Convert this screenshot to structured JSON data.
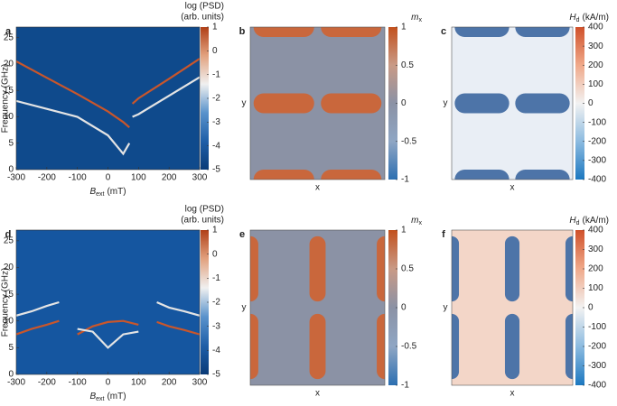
{
  "chart_data": [
    {
      "type": "spectrum",
      "panel": "a",
      "xlabel": {
        "symbol": "B",
        "sub": "ext",
        "unit": "(mT)"
      },
      "ylabel": "Frequency (GHz)",
      "xlim": [
        -300,
        300
      ],
      "xticks": [
        -300,
        -200,
        -100,
        0,
        100,
        200,
        300
      ],
      "ylim": [
        0,
        27
      ],
      "yticks": [
        0,
        5,
        10,
        15,
        20,
        25
      ],
      "x": [
        -300,
        -200,
        -100,
        0,
        50,
        70,
        80,
        100,
        200,
        300
      ],
      "series": [
        {
          "color": "#c9562b",
          "values": [
            20.5,
            17.4,
            14.3,
            11,
            9,
            8,
            null,
            null,
            null,
            null
          ]
        },
        {
          "color": "#c9562b",
          "values": [
            null,
            null,
            null,
            null,
            null,
            null,
            12.5,
            13.5,
            17.2,
            21
          ]
        },
        {
          "color": "#e4e4e4",
          "values": [
            13,
            11.5,
            10,
            6.5,
            3,
            5,
            null,
            null,
            null,
            null
          ]
        },
        {
          "color": "#e4e4e4",
          "values": [
            null,
            null,
            null,
            null,
            null,
            null,
            10,
            10.5,
            14,
            17.5
          ]
        }
      ],
      "colorbar_label": [
        "log (PSD)",
        "(arb. units)"
      ],
      "clim": [
        -5,
        1
      ],
      "cticks": [
        1,
        0,
        -1,
        -2,
        -3,
        -4,
        -5
      ],
      "colormap": [
        "#0a3b78",
        "#1f5fa8",
        "#5a93cc",
        "#f0f0f0",
        "#e2a27f",
        "#b03f17"
      ],
      "background": "#0f4a8c"
    },
    {
      "type": "map",
      "panel": "b",
      "xlabel": "x",
      "ylabel": "y",
      "pattern": "rows",
      "background": "#8b92a5",
      "domain_color": "#c9673c",
      "colorbar_label": {
        "symbol": "m",
        "sub": "x"
      },
      "clim": [
        -1,
        1
      ],
      "cticks": [
        1,
        0.5,
        0,
        -0.5,
        -1
      ],
      "colormap": [
        "#2c6fb1",
        "#8fa6c4",
        "#8b92a5",
        "#c99a86",
        "#c2501d"
      ]
    },
    {
      "type": "map",
      "panel": "c",
      "xlabel": "x",
      "ylabel": "y",
      "pattern": "rows",
      "background": "#e9eef5",
      "domain_color": "#4d74a8",
      "colorbar_label": {
        "symbol": "H",
        "sub": "d",
        "unit": "(kA/m)"
      },
      "clim": [
        -400,
        400
      ],
      "cticks": [
        400,
        300,
        200,
        100,
        0,
        -100,
        -200,
        -300,
        -400
      ],
      "colormap": [
        "#1c78c0",
        "#8cbbe0",
        "#f2f2f2",
        "#f0a98a",
        "#d0512a"
      ]
    },
    {
      "type": "spectrum",
      "panel": "d",
      "xlabel": {
        "symbol": "B",
        "sub": "ext",
        "unit": "(mT)"
      },
      "ylabel": "Frequency (GHz)",
      "xlim": [
        -300,
        300
      ],
      "xticks": [
        -300,
        -200,
        -100,
        0,
        100,
        200,
        300
      ],
      "ylim": [
        0,
        27
      ],
      "yticks": [
        0,
        5,
        10,
        15,
        20,
        25
      ],
      "x": [
        -300,
        -250,
        -200,
        -160,
        -100,
        -50,
        0,
        50,
        100,
        160,
        200,
        250,
        300
      ],
      "series": [
        {
          "color": "#c9562b",
          "values": [
            7.5,
            8.5,
            9.3,
            10,
            null,
            null,
            null,
            null,
            null,
            null,
            null,
            null,
            null
          ]
        },
        {
          "color": "#c9562b",
          "values": [
            null,
            null,
            null,
            null,
            7.5,
            9,
            9.8,
            10,
            9.3,
            null,
            null,
            null,
            null
          ]
        },
        {
          "color": "#c9562b",
          "values": [
            null,
            null,
            null,
            null,
            null,
            null,
            null,
            null,
            null,
            9.8,
            9,
            8.3,
            7.5
          ]
        },
        {
          "color": "#e4e4e4",
          "values": [
            11,
            11.8,
            12.8,
            13.5,
            null,
            null,
            null,
            null,
            null,
            13.5,
            12.5,
            11.8,
            11
          ]
        },
        {
          "color": "#e4e4e4",
          "values": [
            null,
            null,
            null,
            null,
            8.5,
            8,
            5,
            7.5,
            8,
            null,
            null,
            null,
            null
          ]
        }
      ],
      "colorbar_label": [
        "log (PSD)",
        "(arb. units)"
      ],
      "clim": [
        -5,
        1
      ],
      "cticks": [
        1,
        0,
        -1,
        -2,
        -3,
        -4,
        -5
      ],
      "colormap": [
        "#0a3b78",
        "#1f5fa8",
        "#5a93cc",
        "#f0f0f0",
        "#e2a27f",
        "#b03f17"
      ],
      "background": "#1556a0"
    },
    {
      "type": "map",
      "panel": "e",
      "xlabel": "x",
      "ylabel": "y",
      "pattern": "columns",
      "background": "#8b92a5",
      "domain_color": "#c9673c",
      "colorbar_label": {
        "symbol": "m",
        "sub": "x"
      },
      "clim": [
        -1,
        1
      ],
      "cticks": [
        1,
        0.5,
        0,
        -0.5,
        -1
      ],
      "colormap": [
        "#2c6fb1",
        "#8fa6c4",
        "#8b92a5",
        "#c99a86",
        "#c2501d"
      ]
    },
    {
      "type": "map",
      "panel": "f",
      "xlabel": "x",
      "ylabel": "y",
      "pattern": "columns",
      "background": "#f3d6c8",
      "domain_color": "#4d74a8",
      "colorbar_label": {
        "symbol": "H",
        "sub": "d",
        "unit": "(kA/m)"
      },
      "clim": [
        -400,
        400
      ],
      "cticks": [
        400,
        300,
        200,
        100,
        0,
        -100,
        -200,
        -300,
        -400
      ],
      "colormap": [
        "#1c78c0",
        "#8cbbe0",
        "#f2f2f2",
        "#f0a98a",
        "#d0512a"
      ]
    }
  ]
}
